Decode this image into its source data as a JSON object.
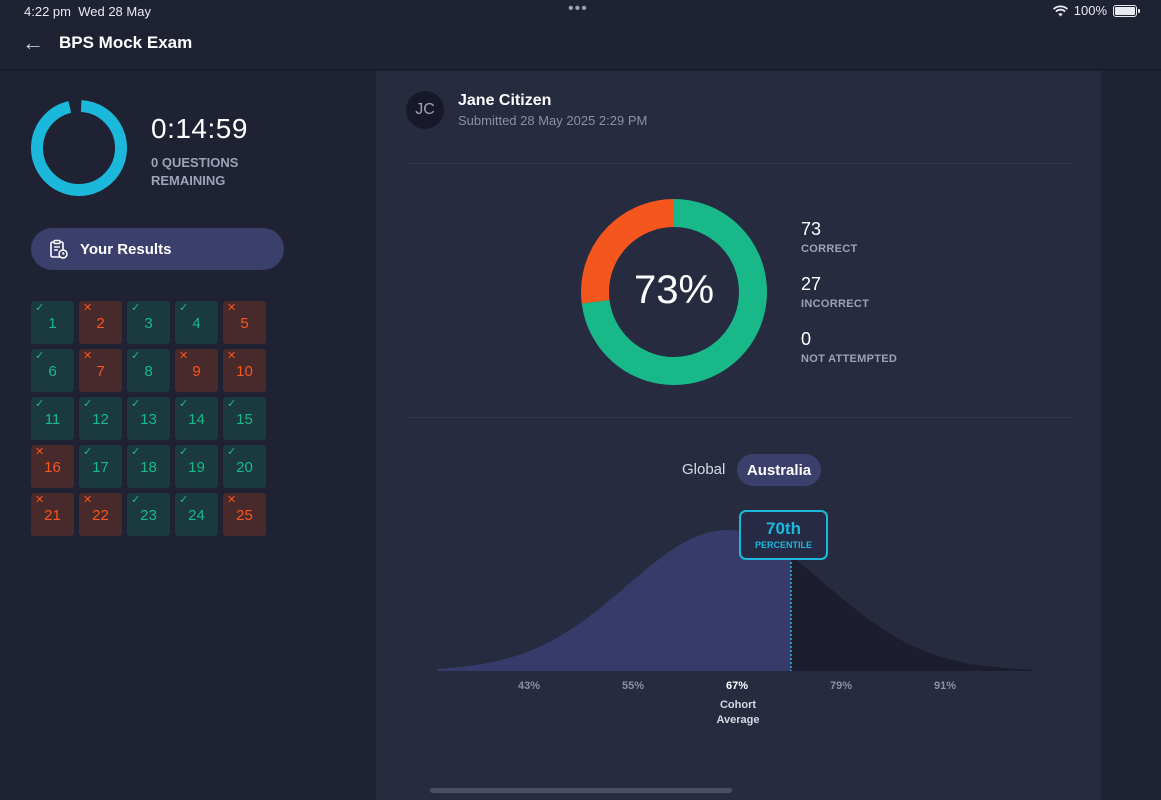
{
  "status_bar": {
    "time": "4:22 pm",
    "date": "Wed 28 May",
    "multitask": "•••",
    "battery": "100%"
  },
  "header": {
    "back_icon": "arrow-left-icon",
    "title": "BPS Mock Exam"
  },
  "timer": {
    "value": "0:14:59",
    "remaining": "0 QUESTIONS REMAINING",
    "ring_color": "#1bb8dc"
  },
  "results_button": {
    "icon": "clipboard-clock-icon",
    "label": "Your Results"
  },
  "question_grid": [
    {
      "n": "1",
      "correct": true
    },
    {
      "n": "2",
      "correct": false
    },
    {
      "n": "3",
      "correct": true
    },
    {
      "n": "4",
      "correct": true
    },
    {
      "n": "5",
      "correct": false
    },
    {
      "n": "6",
      "correct": true
    },
    {
      "n": "7",
      "correct": false
    },
    {
      "n": "8",
      "correct": true
    },
    {
      "n": "9",
      "correct": false
    },
    {
      "n": "10",
      "correct": false
    },
    {
      "n": "11",
      "correct": true
    },
    {
      "n": "12",
      "correct": true
    },
    {
      "n": "13",
      "correct": true
    },
    {
      "n": "14",
      "correct": true
    },
    {
      "n": "15",
      "correct": true
    },
    {
      "n": "16",
      "correct": false
    },
    {
      "n": "17",
      "correct": true
    },
    {
      "n": "18",
      "correct": true
    },
    {
      "n": "19",
      "correct": true
    },
    {
      "n": "20",
      "correct": true
    },
    {
      "n": "21",
      "correct": false
    },
    {
      "n": "22",
      "correct": false
    },
    {
      "n": "23",
      "correct": true
    },
    {
      "n": "24",
      "correct": true
    },
    {
      "n": "25",
      "correct": false
    }
  ],
  "user": {
    "initials": "JC",
    "name": "Jane Citizen",
    "submitted": "Submitted 28 May 2025 2:29 PM"
  },
  "score": {
    "percent": "73%",
    "correct": "73",
    "correct_label": "CORRECT",
    "incorrect": "27",
    "incorrect_label": "INCORRECT",
    "not_attempted": "0",
    "not_attempted_label": "NOT ATTEMPTED",
    "correct_color": "#19b889",
    "incorrect_color": "#f4561e"
  },
  "scope_tabs": {
    "global": "Global",
    "australia": "Australia",
    "selected": "Australia"
  },
  "percentile": {
    "value": "70th",
    "label": "PERCENTILE",
    "accent": "#1bb8dc"
  },
  "distribution": {
    "ticks": [
      "43%",
      "55%",
      "67%",
      "79%",
      "91%"
    ],
    "cohort_average_tick": "67%",
    "cohort_average_label": "Cohort Average"
  },
  "colors": {
    "background": "#1e2233",
    "panel": "#272b40",
    "accent_pill": "#3a3f6c"
  }
}
